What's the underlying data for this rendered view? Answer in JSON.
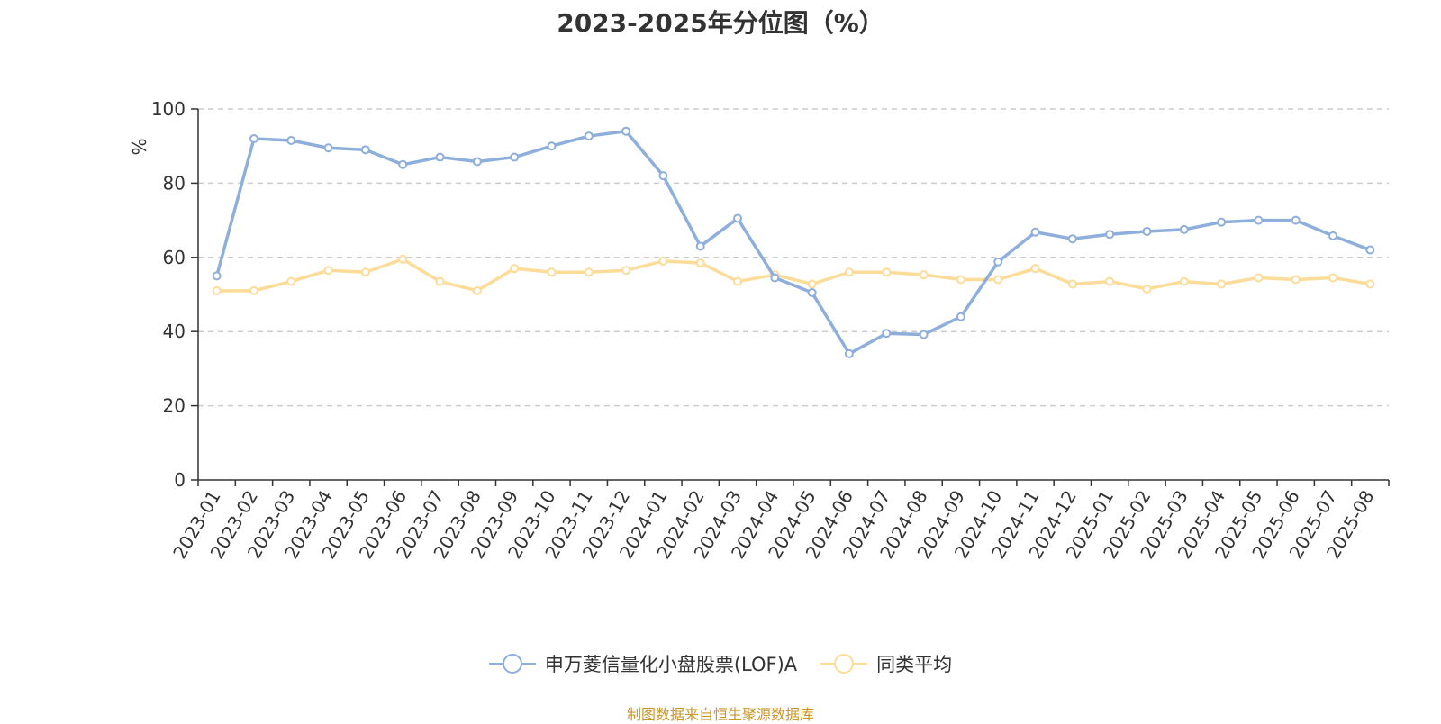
{
  "chart_data": {
    "type": "line",
    "title": "2023-2025年分位图（%）",
    "ylabel": "%",
    "xlabel": "",
    "ylim": [
      0,
      100
    ],
    "yticks": [
      0,
      20,
      40,
      60,
      80,
      100
    ],
    "grid": true,
    "legend_position": "bottom",
    "categories": [
      "2023-01",
      "2023-02",
      "2023-03",
      "2023-04",
      "2023-05",
      "2023-06",
      "2023-07",
      "2023-08",
      "2023-09",
      "2023-10",
      "2023-11",
      "2023-12",
      "2024-01",
      "2024-02",
      "2024-03",
      "2024-04",
      "2024-05",
      "2024-06",
      "2024-07",
      "2024-08",
      "2024-09",
      "2024-10",
      "2024-11",
      "2024-12",
      "2025-01",
      "2025-02",
      "2025-03",
      "2025-04",
      "2025-05",
      "2025-06",
      "2025-07",
      "2025-08"
    ],
    "series": [
      {
        "name": "申万菱信量化小盘股票(LOF)A",
        "color": "#8eaedb",
        "values": [
          55,
          92,
          91.5,
          89.5,
          89,
          85,
          87,
          85.8,
          87,
          90,
          92.7,
          94,
          82,
          63,
          70.5,
          54.5,
          50.5,
          34,
          39.5,
          39.2,
          44,
          58.8,
          66.8,
          65,
          66.2,
          67,
          67.5,
          69.5,
          70,
          70,
          65.8,
          62
        ]
      },
      {
        "name": "同类平均",
        "color": "#fcdc98",
        "values": [
          51,
          51,
          53.5,
          56.5,
          56,
          59.5,
          53.5,
          51,
          57,
          56,
          56,
          56.5,
          59,
          58.5,
          53.5,
          55.3,
          52.8,
          56,
          56,
          55.3,
          54,
          54,
          57,
          52.8,
          53.5,
          51.5,
          53.5,
          52.8,
          54.5,
          54,
          54.5,
          52.8
        ]
      }
    ]
  },
  "footer": {
    "source": "制图数据来自恒生聚源数据库"
  },
  "colors": {
    "axis": "#333333",
    "grid": "#cccccc",
    "ylabel": "#ff0000",
    "source": "#c8962a"
  }
}
